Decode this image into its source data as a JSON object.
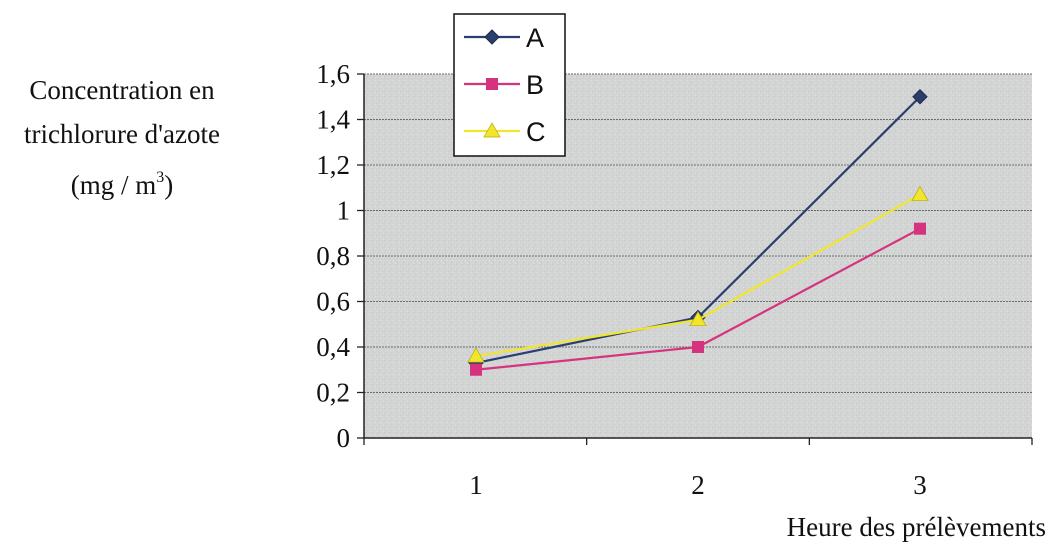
{
  "chart_data": {
    "type": "line",
    "title": "",
    "ylabel_lines": [
      "Concentration en",
      "trichlorure d'azote"
    ],
    "yunit": {
      "prefix": "(mg / m",
      "exponent": "3",
      "suffix": ")"
    },
    "xlabel": "Heure des prélèvements",
    "x": [
      1,
      2,
      3
    ],
    "xtick_labels": [
      "1",
      "2",
      "3"
    ],
    "yticks": [
      0,
      0.2,
      0.4,
      0.6,
      0.8,
      1,
      1.2,
      1.4,
      1.6
    ],
    "ytick_labels": [
      "0",
      "0,2",
      "0,4",
      "0,6",
      "0,8",
      "1",
      "1,2",
      "1,4",
      "1,6"
    ],
    "ylim": [
      0,
      1.6
    ],
    "grid": true,
    "legend_position": "top-left",
    "series": [
      {
        "name": "A",
        "values": [
          0.33,
          0.53,
          1.5
        ],
        "color": "#2b3f6e",
        "marker": "diamond"
      },
      {
        "name": "B",
        "values": [
          0.3,
          0.4,
          0.92
        ],
        "color": "#d6337f",
        "marker": "square"
      },
      {
        "name": "C",
        "values": [
          0.36,
          0.52,
          1.07
        ],
        "color": "#f2e62c",
        "marker": "triangle"
      }
    ]
  }
}
